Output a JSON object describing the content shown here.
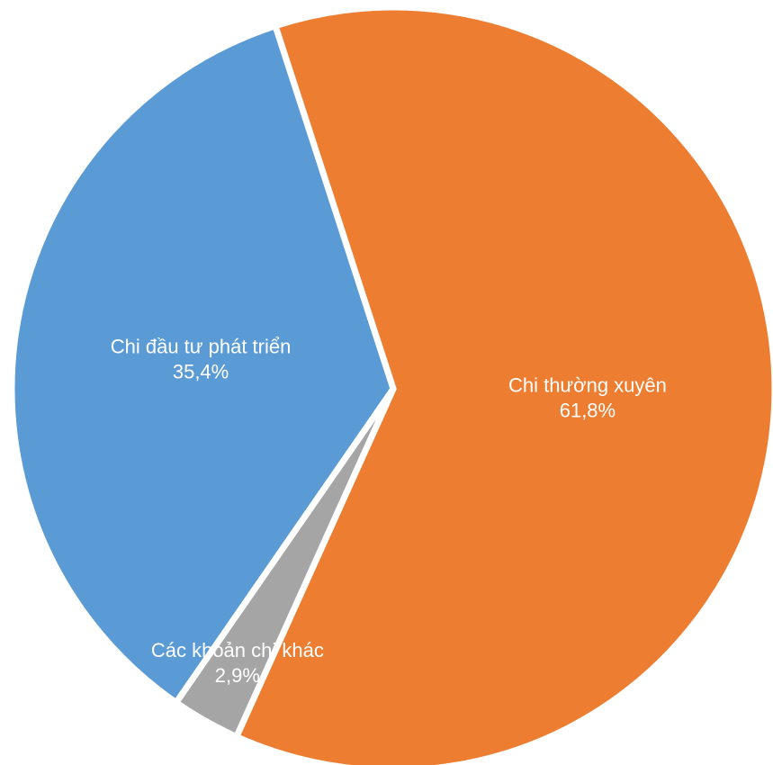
{
  "chart_data": {
    "type": "pie",
    "categories": [
      "Chi thường xuyên",
      "Các khoản chi khác",
      "Chi đầu tư phát triển"
    ],
    "values": [
      61.8,
      2.9,
      35.4
    ],
    "value_labels": [
      "61,8%",
      "2,9%",
      "35,4%"
    ],
    "colors": [
      "#ED7D31",
      "#A5A5A5",
      "#5B9BD5"
    ]
  }
}
